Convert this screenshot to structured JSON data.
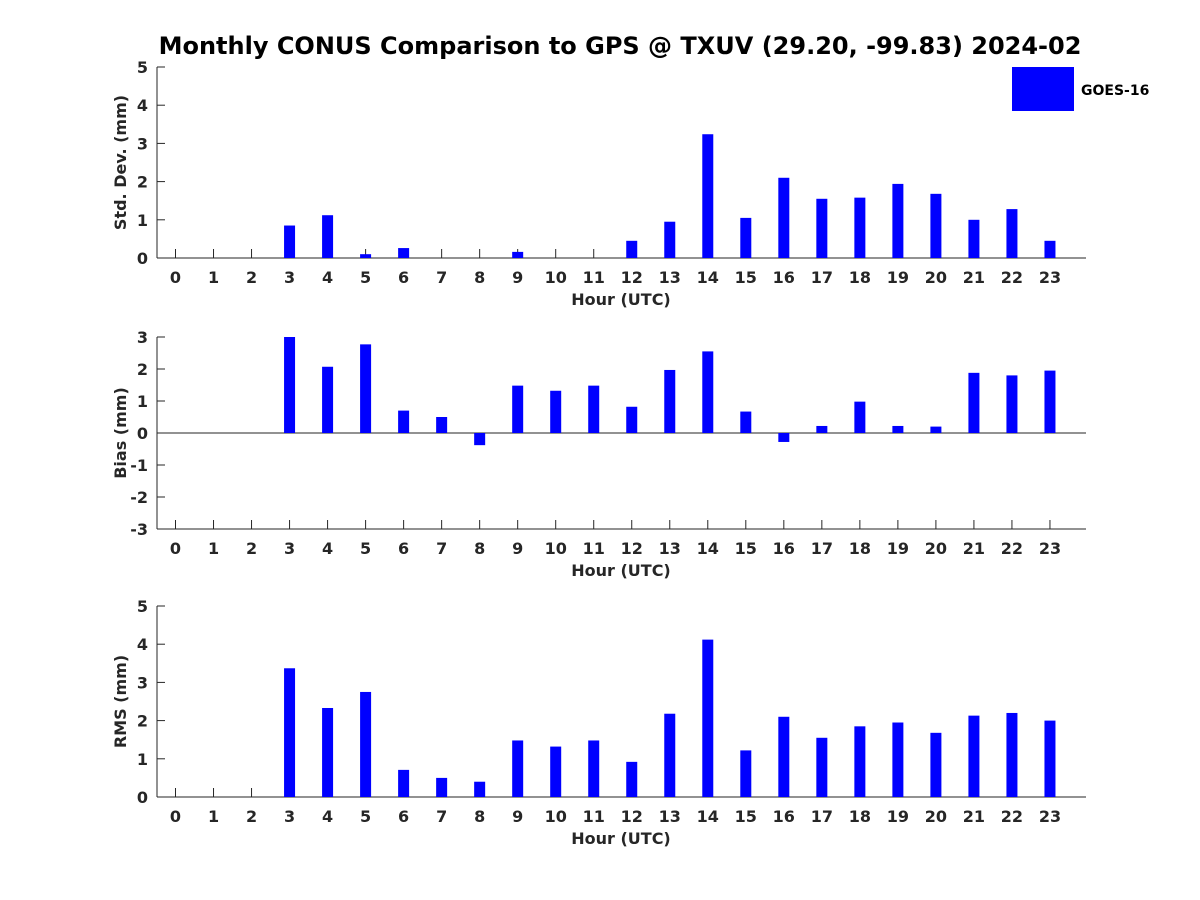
{
  "title": "Monthly CONUS Comparison to GPS @ TXUV (29.20, -99.83) 2024-02",
  "legend": {
    "label": "GOES-16",
    "placement": "top-right"
  },
  "colors": {
    "bar": "#0000ff",
    "axis": "#262626"
  },
  "chart_data": [
    {
      "type": "bar",
      "ylabel": "Std. Dev. (mm)",
      "xlabel": "Hour (UTC)",
      "ylim": [
        0,
        5
      ],
      "yticks": [
        0,
        1,
        2,
        3,
        4,
        5
      ],
      "categories": [
        "0",
        "1",
        "2",
        "3",
        "4",
        "5",
        "6",
        "7",
        "8",
        "9",
        "10",
        "11",
        "12",
        "13",
        "14",
        "15",
        "16",
        "17",
        "18",
        "19",
        "20",
        "21",
        "22",
        "23"
      ],
      "series": [
        {
          "name": "GOES-16",
          "values": [
            null,
            null,
            null,
            0.85,
            1.12,
            0.1,
            0.26,
            null,
            null,
            0.16,
            null,
            null,
            0.45,
            0.95,
            3.24,
            1.05,
            2.1,
            1.55,
            1.58,
            1.94,
            1.68,
            1.0,
            1.28,
            0.45
          ]
        }
      ]
    },
    {
      "type": "bar",
      "ylabel": "Bias (mm)",
      "xlabel": "Hour (UTC)",
      "ylim": [
        -3,
        3
      ],
      "yticks": [
        -3,
        -2,
        -1,
        0,
        1,
        2,
        3
      ],
      "categories": [
        "0",
        "1",
        "2",
        "3",
        "4",
        "5",
        "6",
        "7",
        "8",
        "9",
        "10",
        "11",
        "12",
        "13",
        "14",
        "15",
        "16",
        "17",
        "18",
        "19",
        "20",
        "21",
        "22",
        "23"
      ],
      "series": [
        {
          "name": "GOES-16",
          "values": [
            null,
            null,
            null,
            3.0,
            2.07,
            2.77,
            0.7,
            0.5,
            -0.38,
            1.48,
            1.32,
            1.48,
            0.82,
            1.97,
            2.55,
            0.67,
            -0.28,
            0.22,
            0.98,
            0.22,
            0.2,
            1.88,
            1.8,
            1.95
          ]
        }
      ]
    },
    {
      "type": "bar",
      "ylabel": "RMS (mm)",
      "xlabel": "Hour (UTC)",
      "ylim": [
        0,
        5
      ],
      "yticks": [
        0,
        1,
        2,
        3,
        4,
        5
      ],
      "categories": [
        "0",
        "1",
        "2",
        "3",
        "4",
        "5",
        "6",
        "7",
        "8",
        "9",
        "10",
        "11",
        "12",
        "13",
        "14",
        "15",
        "16",
        "17",
        "18",
        "19",
        "20",
        "21",
        "22",
        "23"
      ],
      "series": [
        {
          "name": "GOES-16",
          "values": [
            null,
            null,
            null,
            3.37,
            2.33,
            2.75,
            0.71,
            0.5,
            0.4,
            1.48,
            1.32,
            1.48,
            0.92,
            2.18,
            4.12,
            1.22,
            2.1,
            1.55,
            1.85,
            1.95,
            1.68,
            2.13,
            2.2,
            2.0
          ]
        }
      ]
    }
  ]
}
